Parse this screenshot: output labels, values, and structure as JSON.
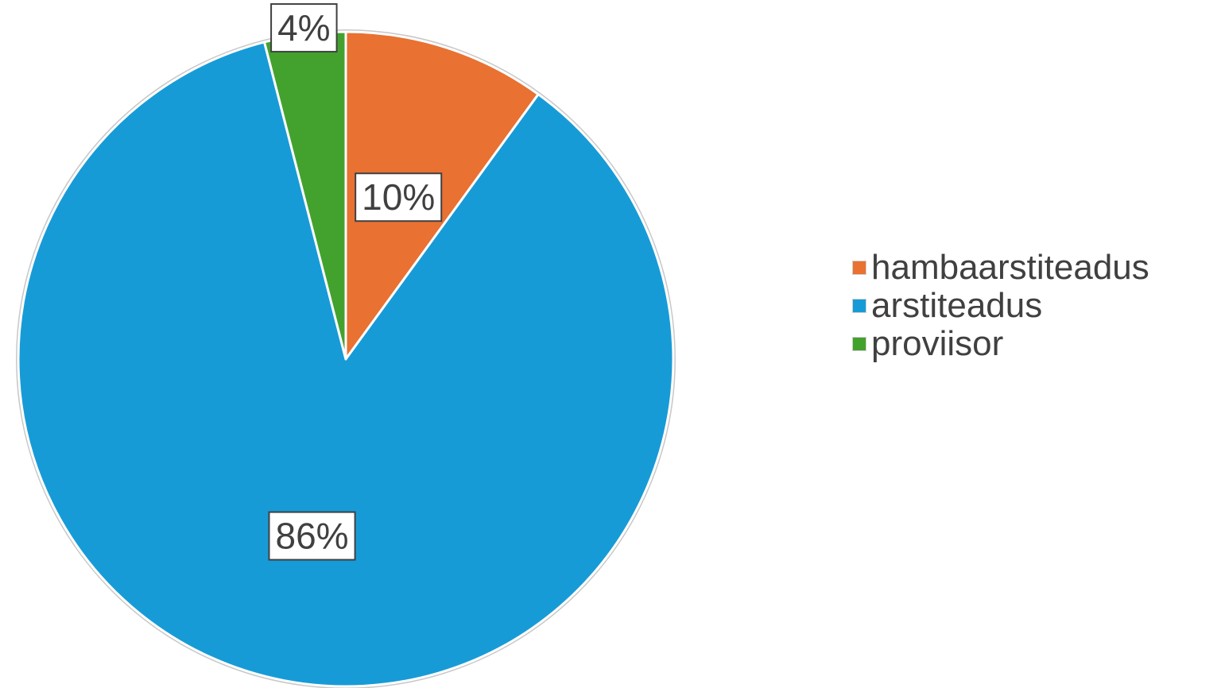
{
  "chart_data": {
    "type": "pie",
    "slices": [
      {
        "name": "hambaarstiteadus",
        "value": 10,
        "label": "10%",
        "color": "#E97132"
      },
      {
        "name": "arstiteadus",
        "value": 86,
        "label": "86%",
        "color": "#179BD7"
      },
      {
        "name": "proviisor",
        "value": 4,
        "label": "4%",
        "color": "#43A22E"
      }
    ],
    "legend_position": "right"
  }
}
